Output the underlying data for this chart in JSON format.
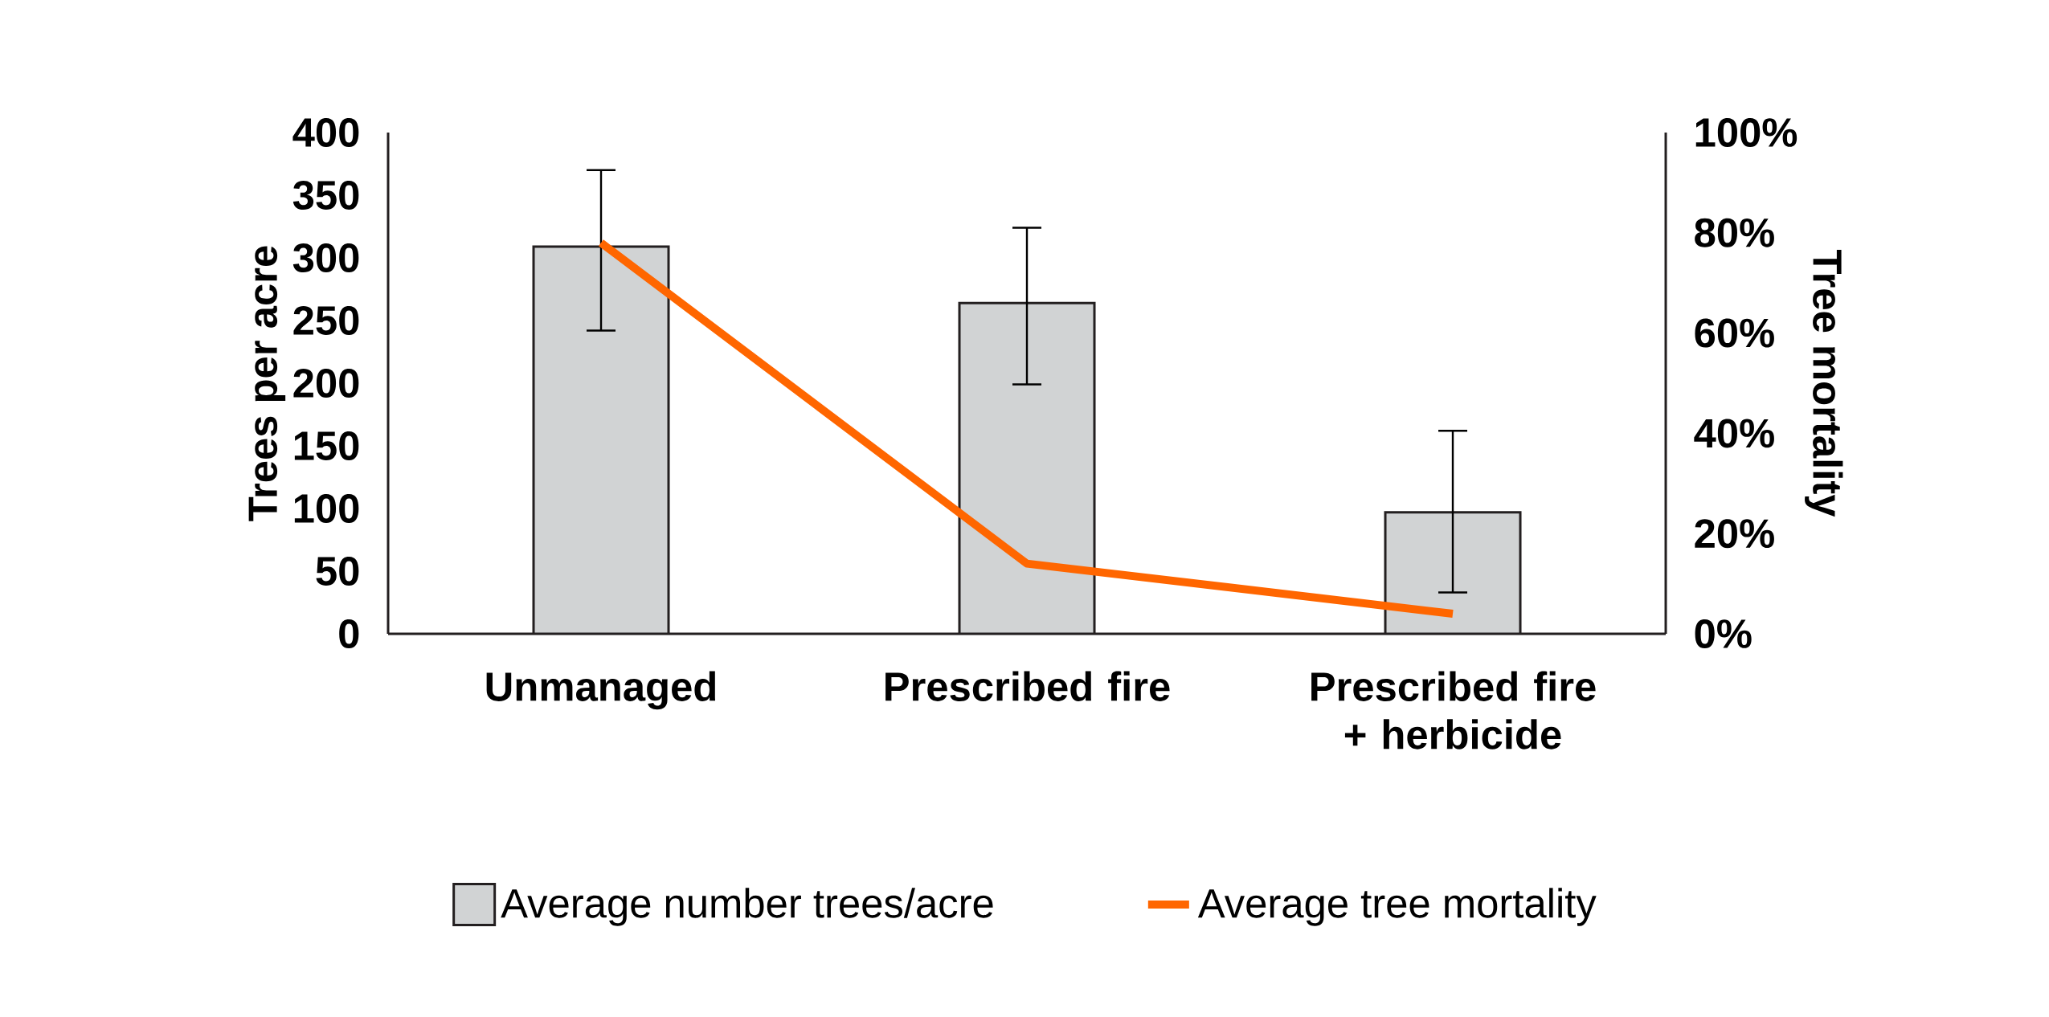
{
  "chart_data": {
    "type": "bar",
    "categories": [
      "Unmanaged",
      "Prescribed fire",
      "Prescribed fire + herbicide"
    ],
    "ylabel": "Trees per acre",
    "y2label": "Tree mortality",
    "ylim": [
      0,
      400
    ],
    "yticks": [
      0,
      50,
      100,
      150,
      200,
      250,
      300,
      350,
      400
    ],
    "y2lim": [
      0,
      100
    ],
    "y2ticks": [
      {
        "value": 0,
        "label": "0%"
      },
      {
        "value": 20,
        "label": "20%"
      },
      {
        "value": 40,
        "label": "40%"
      },
      {
        "value": 60,
        "label": "60%"
      },
      {
        "value": 80,
        "label": "80%"
      },
      {
        "value": 100,
        "label": "100%"
      }
    ],
    "legend": "bottom",
    "series": [
      {
        "name": "Average number trees/acre",
        "color": "#d1d3d4",
        "values": [
          309,
          264,
          97
        ],
        "errors": [
          [
            242,
            370
          ],
          [
            199,
            324
          ],
          [
            33,
            162
          ]
        ]
      },
      {
        "name": "Average tree mortality",
        "type": "line",
        "axis": "y2",
        "color": "#ff6600",
        "values": [
          78,
          14,
          4
        ]
      }
    ]
  }
}
